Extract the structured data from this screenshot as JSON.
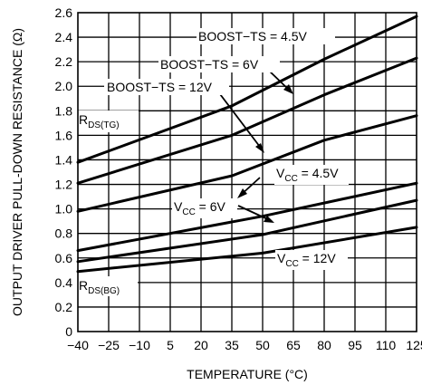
{
  "chart_data": {
    "type": "line",
    "xlabel": "TEMPERATURE (°C)",
    "ylabel": "OUTPUT DRIVER PULL-DOWN RESISTANCE (Ω)",
    "xlim": [
      -40,
      125
    ],
    "ylim": [
      0,
      2.6
    ],
    "xticks": [
      "−40",
      "−25",
      "−10",
      "5",
      "20",
      "35",
      "50",
      "65",
      "80",
      "95",
      "110",
      "125"
    ],
    "yticks": [
      "0",
      "0.2",
      "0.4",
      "0.6",
      "0.8",
      "1.0",
      "1.2",
      "1.4",
      "1.6",
      "1.8",
      "2.0",
      "2.2",
      "2.4",
      "2.6"
    ],
    "grid": true,
    "series": [
      {
        "name": "BOOST−TS = 4.5V",
        "x": [
          -40,
          35,
          80,
          125
        ],
        "y": [
          1.38,
          1.84,
          2.22,
          2.57
        ]
      },
      {
        "name": "BOOST−TS = 6V",
        "x": [
          -40,
          35,
          80,
          125
        ],
        "y": [
          1.21,
          1.6,
          1.93,
          2.23
        ]
      },
      {
        "name": "BOOST−TS = 12V",
        "x": [
          -40,
          35,
          80,
          125
        ],
        "y": [
          0.98,
          1.27,
          1.56,
          1.76
        ]
      },
      {
        "name": "VCC = 4.5V",
        "x": [
          -40,
          50,
          125
        ],
        "y": [
          0.66,
          0.94,
          1.21
        ]
      },
      {
        "name": "VCC = 6V",
        "x": [
          -40,
          50,
          125
        ],
        "y": [
          0.57,
          0.79,
          1.07
        ]
      },
      {
        "name": "VCC = 12V",
        "x": [
          -40,
          50,
          125
        ],
        "y": [
          0.49,
          0.64,
          0.85
        ]
      }
    ],
    "annotations": {
      "boost45": "BOOST−TS = 4.5V",
      "boost6": "BOOST−TS = 6V",
      "boost12": "BOOST−TS = 12V",
      "rdstg_main": "R",
      "rdstg_sub": "DS(TG)",
      "rdsbg_main": "R",
      "rdsbg_sub": "DS(BG)",
      "vcc45_main": "V",
      "vcc45_sub": "CC",
      "vcc45_value": " = 4.5V",
      "vcc6_main": "V",
      "vcc6_sub": "CC",
      "vcc6_value": " = 6V",
      "vcc12_main": "V",
      "vcc12_sub": "CC",
      "vcc12_value": " = 12V"
    }
  }
}
